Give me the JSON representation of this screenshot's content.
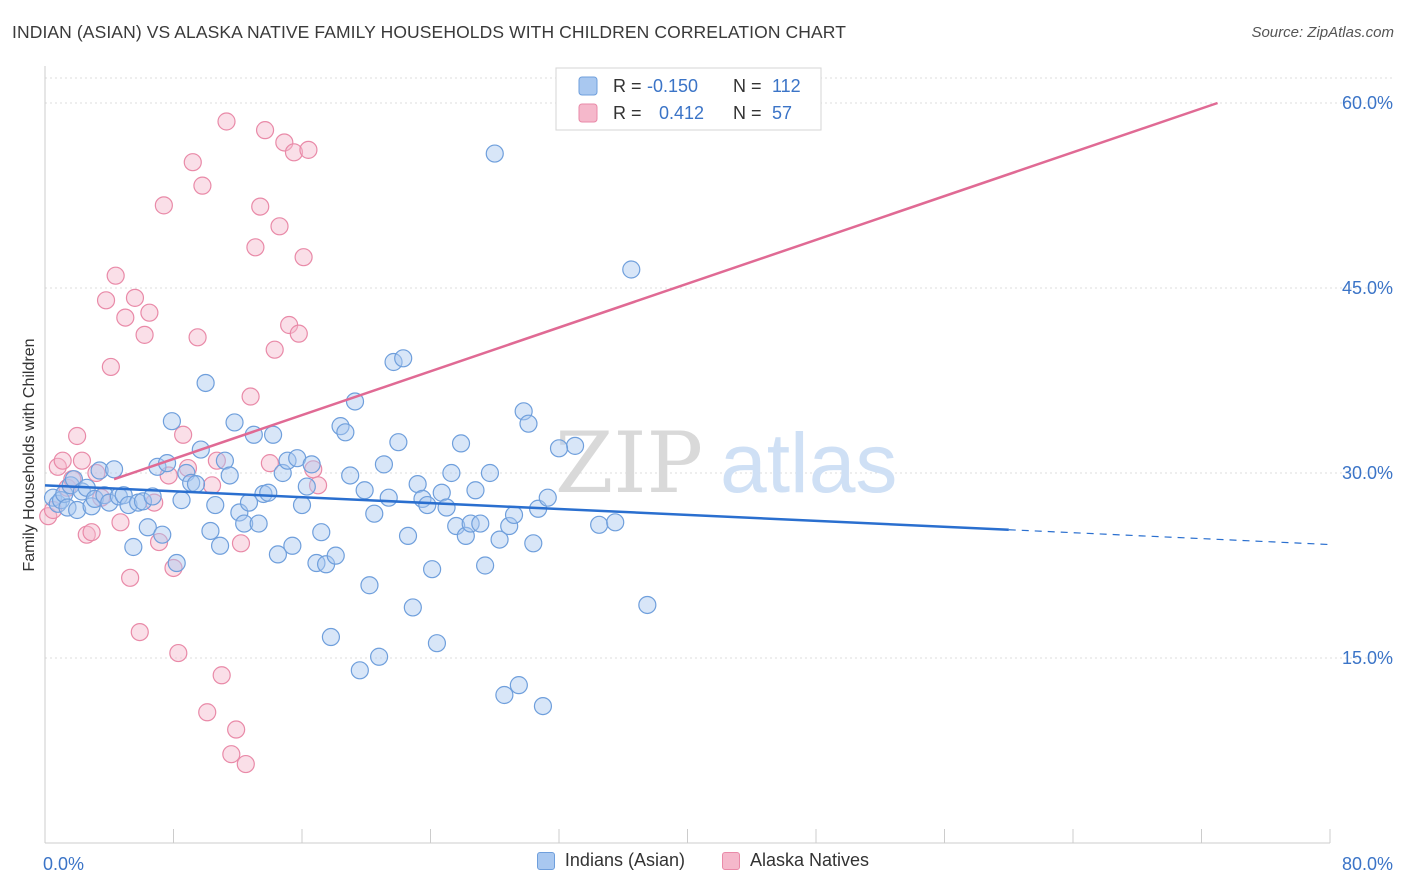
{
  "header": {
    "title": "INDIAN (ASIAN) VS ALASKA NATIVE FAMILY HOUSEHOLDS WITH CHILDREN CORRELATION CHART",
    "source": "Source: ZipAtlas.com"
  },
  "watermark": {
    "zip": "ZIP",
    "atlas": "atlas"
  },
  "colors": {
    "blue_fill": "#a9c8f0",
    "blue_stroke": "#6f9fdc",
    "blue_line": "#2a6fcf",
    "pink_fill": "#f5b8cb",
    "pink_stroke": "#e98aa8",
    "pink_line": "#e06a94",
    "axis_text": "#3b74c7",
    "grid": "#dddddd"
  },
  "legend_top": [
    {
      "r_label": "R =",
      "r_value": "-0.150",
      "n_label": "N =",
      "n_value": "112"
    },
    {
      "r_label": "R =",
      "r_value": "0.412",
      "n_label": "N =",
      "n_value": "57"
    }
  ],
  "chart_data": {
    "type": "scatter",
    "ylabel": "Family Households with Children",
    "xlim": [
      0,
      80
    ],
    "ylim": [
      0,
      63
    ],
    "x_tick_labels": [
      "0.0%",
      "80.0%"
    ],
    "y_ticks": [
      15,
      30,
      45,
      60
    ],
    "y_tick_labels": [
      "15.0%",
      "30.0%",
      "45.0%",
      "60.0%"
    ],
    "legend_position": "bottom-center",
    "grid": true,
    "series": [
      {
        "name": "Indians (Asian)",
        "color": "#a9c8f0",
        "trend": {
          "x0": 0,
          "y0": 29.0,
          "x1": 60,
          "y1": 25.4,
          "dash_to_x": 80,
          "dash_to_y": 24.2
        },
        "points": [
          [
            0.5,
            28.0
          ],
          [
            0.8,
            27.5
          ],
          [
            1.0,
            27.8
          ],
          [
            1.2,
            28.3
          ],
          [
            1.4,
            27.2
          ],
          [
            1.6,
            29.0
          ],
          [
            1.8,
            29.5
          ],
          [
            2.0,
            27.0
          ],
          [
            2.3,
            28.5
          ],
          [
            2.6,
            28.8
          ],
          [
            2.9,
            27.3
          ],
          [
            3.1,
            27.9
          ],
          [
            3.4,
            30.2
          ],
          [
            3.7,
            28.2
          ],
          [
            4.0,
            27.6
          ],
          [
            4.3,
            30.3
          ],
          [
            4.6,
            28.1
          ],
          [
            4.9,
            28.2
          ],
          [
            5.2,
            27.4
          ],
          [
            5.5,
            24.0
          ],
          [
            5.8,
            27.6
          ],
          [
            6.1,
            27.7
          ],
          [
            6.4,
            25.6
          ],
          [
            6.7,
            28.1
          ],
          [
            7.0,
            30.5
          ],
          [
            7.3,
            25.0
          ],
          [
            7.6,
            30.8
          ],
          [
            7.9,
            34.2
          ],
          [
            8.2,
            22.7
          ],
          [
            8.5,
            27.8
          ],
          [
            8.8,
            30.0
          ],
          [
            9.1,
            29.2
          ],
          [
            9.4,
            29.1
          ],
          [
            9.7,
            31.9
          ],
          [
            10.0,
            37.3
          ],
          [
            10.3,
            25.3
          ],
          [
            10.6,
            27.4
          ],
          [
            10.9,
            24.1
          ],
          [
            11.2,
            31.0
          ],
          [
            11.5,
            29.8
          ],
          [
            11.8,
            34.1
          ],
          [
            12.1,
            26.8
          ],
          [
            12.4,
            25.9
          ],
          [
            12.7,
            27.6
          ],
          [
            13.0,
            33.1
          ],
          [
            13.3,
            25.9
          ],
          [
            13.6,
            28.3
          ],
          [
            13.9,
            28.4
          ],
          [
            14.2,
            33.1
          ],
          [
            14.5,
            23.4
          ],
          [
            14.8,
            30.0
          ],
          [
            15.1,
            31.0
          ],
          [
            15.4,
            24.1
          ],
          [
            15.7,
            31.2
          ],
          [
            16.0,
            27.4
          ],
          [
            16.3,
            28.9
          ],
          [
            16.6,
            30.7
          ],
          [
            16.9,
            22.7
          ],
          [
            17.2,
            25.2
          ],
          [
            17.5,
            22.6
          ],
          [
            17.8,
            16.7
          ],
          [
            18.1,
            23.3
          ],
          [
            18.4,
            33.8
          ],
          [
            18.7,
            33.3
          ],
          [
            19.0,
            29.8
          ],
          [
            19.3,
            35.8
          ],
          [
            19.6,
            14.0
          ],
          [
            19.9,
            28.6
          ],
          [
            20.2,
            20.9
          ],
          [
            20.5,
            26.7
          ],
          [
            20.8,
            15.1
          ],
          [
            21.1,
            30.7
          ],
          [
            21.4,
            28.0
          ],
          [
            21.7,
            39.0
          ],
          [
            22.0,
            32.5
          ],
          [
            22.3,
            39.3
          ],
          [
            22.6,
            24.9
          ],
          [
            22.9,
            19.1
          ],
          [
            23.2,
            29.1
          ],
          [
            23.5,
            27.9
          ],
          [
            23.8,
            27.4
          ],
          [
            24.1,
            22.2
          ],
          [
            24.4,
            16.2
          ],
          [
            24.7,
            28.4
          ],
          [
            25.0,
            27.2
          ],
          [
            25.3,
            30.0
          ],
          [
            25.6,
            25.7
          ],
          [
            25.9,
            32.4
          ],
          [
            26.2,
            24.9
          ],
          [
            26.5,
            25.9
          ],
          [
            26.8,
            28.6
          ],
          [
            27.1,
            25.9
          ],
          [
            27.4,
            22.5
          ],
          [
            27.7,
            30.0
          ],
          [
            28.0,
            55.9
          ],
          [
            28.3,
            24.6
          ],
          [
            28.6,
            12.0
          ],
          [
            28.9,
            25.7
          ],
          [
            29.2,
            26.6
          ],
          [
            29.5,
            12.8
          ],
          [
            29.8,
            35.0
          ],
          [
            30.1,
            34.0
          ],
          [
            30.4,
            24.3
          ],
          [
            30.7,
            27.1
          ],
          [
            31.0,
            11.1
          ],
          [
            31.3,
            28.0
          ],
          [
            33.0,
            32.2
          ],
          [
            34.5,
            25.8
          ],
          [
            36.5,
            46.5
          ],
          [
            37.5,
            19.3
          ],
          [
            32.0,
            32.0
          ],
          [
            35.5,
            26.0
          ]
        ]
      },
      {
        "name": "Alaska Natives",
        "color": "#f5b8cb",
        "trend": {
          "x0": 4.3,
          "y0": 29.5,
          "x1": 73.0,
          "y1": 60.0
        },
        "points": [
          [
            0.2,
            26.5
          ],
          [
            0.5,
            27.0
          ],
          [
            0.8,
            30.5
          ],
          [
            1.1,
            31.0
          ],
          [
            1.4,
            28.8
          ],
          [
            1.7,
            29.5
          ],
          [
            2.0,
            33.0
          ],
          [
            2.3,
            31.0
          ],
          [
            2.6,
            25.0
          ],
          [
            2.9,
            25.2
          ],
          [
            3.2,
            30.0
          ],
          [
            3.5,
            28.0
          ],
          [
            3.8,
            44.0
          ],
          [
            4.1,
            38.6
          ],
          [
            4.4,
            46.0
          ],
          [
            4.7,
            26.0
          ],
          [
            5.0,
            42.6
          ],
          [
            5.3,
            21.5
          ],
          [
            5.6,
            44.2
          ],
          [
            5.9,
            17.1
          ],
          [
            6.2,
            41.2
          ],
          [
            6.5,
            43.0
          ],
          [
            6.8,
            27.6
          ],
          [
            7.1,
            24.4
          ],
          [
            7.4,
            51.7
          ],
          [
            7.7,
            29.8
          ],
          [
            8.0,
            22.3
          ],
          [
            8.3,
            15.4
          ],
          [
            8.6,
            33.1
          ],
          [
            8.9,
            30.4
          ],
          [
            9.2,
            55.2
          ],
          [
            9.5,
            41.0
          ],
          [
            9.8,
            53.3
          ],
          [
            10.1,
            10.6
          ],
          [
            10.4,
            29.0
          ],
          [
            10.7,
            31.0
          ],
          [
            11.0,
            13.6
          ],
          [
            11.3,
            58.5
          ],
          [
            11.6,
            7.2
          ],
          [
            11.9,
            9.2
          ],
          [
            12.2,
            24.3
          ],
          [
            12.5,
            6.4
          ],
          [
            12.8,
            36.2
          ],
          [
            13.1,
            48.3
          ],
          [
            13.4,
            51.6
          ],
          [
            13.7,
            57.8
          ],
          [
            14.0,
            30.8
          ],
          [
            14.3,
            40.0
          ],
          [
            14.6,
            50.0
          ],
          [
            14.9,
            56.8
          ],
          [
            15.2,
            42.0
          ],
          [
            15.5,
            56.0
          ],
          [
            15.8,
            41.3
          ],
          [
            16.1,
            47.5
          ],
          [
            16.4,
            56.2
          ],
          [
            16.7,
            30.3
          ],
          [
            17.0,
            29.0
          ]
        ]
      }
    ]
  },
  "legend_bottom": [
    "Indians (Asian)",
    "Alaska Natives"
  ]
}
